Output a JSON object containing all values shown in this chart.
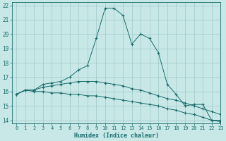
{
  "xlabel": "Humidex (Indice chaleur)",
  "ylabel": "",
  "xlim": [
    -0.5,
    23
  ],
  "ylim": [
    13.8,
    22.2
  ],
  "yticks": [
    14,
    15,
    16,
    17,
    18,
    19,
    20,
    21,
    22
  ],
  "xticks": [
    0,
    1,
    2,
    3,
    4,
    5,
    6,
    7,
    8,
    9,
    10,
    11,
    12,
    13,
    14,
    15,
    16,
    17,
    18,
    19,
    20,
    21,
    22,
    23
  ],
  "bg_color": "#c8e8e8",
  "line_color": "#1a6b6b",
  "grid_color": "#a0c8c8",
  "series": [
    {
      "x": [
        0,
        1,
        2,
        3,
        4,
        5,
        6,
        7,
        8,
        9,
        10,
        11,
        12,
        13,
        14,
        15,
        16,
        17,
        18,
        19,
        20,
        21,
        22,
        23
      ],
      "y": [
        15.8,
        16.1,
        16.1,
        16.5,
        16.6,
        16.7,
        17.0,
        17.5,
        17.8,
        19.7,
        21.8,
        21.8,
        21.3,
        19.3,
        20.0,
        19.7,
        18.7,
        16.5,
        15.8,
        15.0,
        15.1,
        15.1,
        14.0,
        14.0
      ]
    },
    {
      "x": [
        0,
        1,
        2,
        3,
        4,
        5,
        6,
        7,
        8,
        9,
        10,
        11,
        12,
        13,
        14,
        15,
        16,
        17,
        18,
        19,
        20,
        21,
        22,
        23
      ],
      "y": [
        15.8,
        16.1,
        16.1,
        16.3,
        16.4,
        16.5,
        16.6,
        16.7,
        16.7,
        16.7,
        16.6,
        16.5,
        16.4,
        16.2,
        16.1,
        15.9,
        15.7,
        15.5,
        15.4,
        15.2,
        15.0,
        14.8,
        14.6,
        14.4
      ]
    },
    {
      "x": [
        0,
        1,
        2,
        3,
        4,
        5,
        6,
        7,
        8,
        9,
        10,
        11,
        12,
        13,
        14,
        15,
        16,
        17,
        18,
        19,
        20,
        21,
        22,
        23
      ],
      "y": [
        15.8,
        16.1,
        16.0,
        16.0,
        15.9,
        15.9,
        15.8,
        15.8,
        15.7,
        15.7,
        15.6,
        15.5,
        15.4,
        15.3,
        15.2,
        15.1,
        15.0,
        14.8,
        14.7,
        14.5,
        14.4,
        14.2,
        14.0,
        13.9
      ]
    }
  ]
}
